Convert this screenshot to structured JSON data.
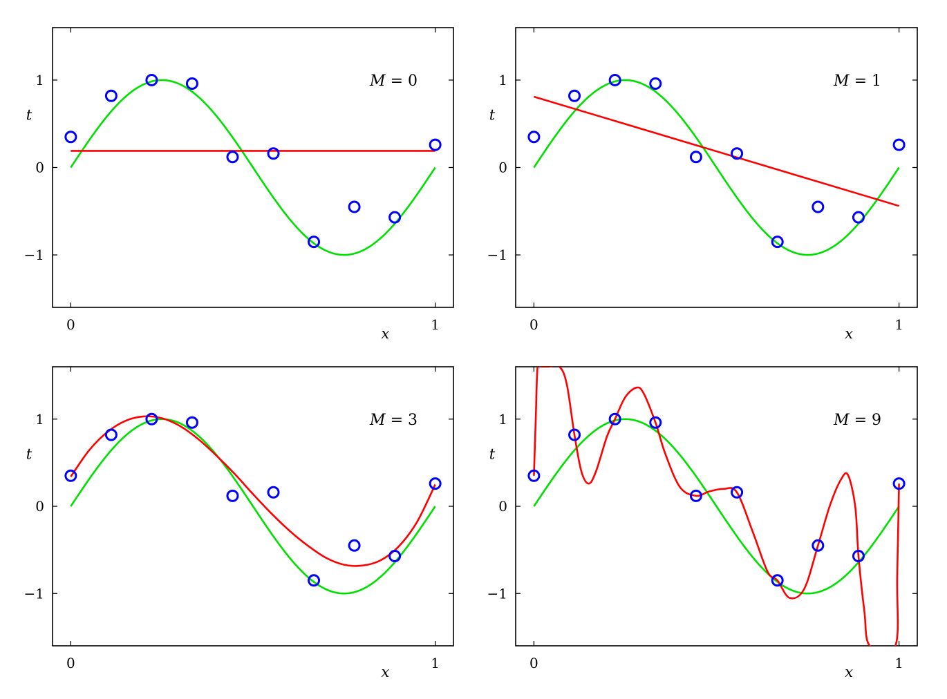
{
  "chart_data": [
    {
      "type": "line",
      "panel_label": {
        "var": "M",
        "eq": " = ",
        "val": "0"
      },
      "xlabel": "x",
      "ylabel": "t",
      "xlim": [
        -0.05,
        1.05
      ],
      "ylim": [
        -1.6,
        1.6
      ],
      "xticks": [
        {
          "v": 0,
          "label": "0"
        },
        {
          "v": 1,
          "label": "1"
        }
      ],
      "yticks": [
        {
          "v": -1,
          "label": "−1"
        },
        {
          "v": 0,
          "label": "0"
        },
        {
          "v": 1,
          "label": "1"
        }
      ],
      "grid": false,
      "points": {
        "x": [
          0,
          0.111,
          0.222,
          0.333,
          0.444,
          0.556,
          0.667,
          0.778,
          0.889,
          1.0
        ],
        "y": [
          0.35,
          0.82,
          1.0,
          0.96,
          0.12,
          0.16,
          -0.85,
          -0.45,
          -0.57,
          0.26
        ],
        "color": "#0000ff"
      },
      "true_curve": {
        "function": "sin(2πx)",
        "color": "#00e000"
      },
      "fit_curve": {
        "x": [
          0,
          1
        ],
        "y": [
          0.19,
          0.19
        ],
        "color": "#ff0000"
      }
    },
    {
      "type": "line",
      "panel_label": {
        "var": "M",
        "eq": " = ",
        "val": "1"
      },
      "xlabel": "x",
      "ylabel": "t",
      "xlim": [
        -0.05,
        1.05
      ],
      "ylim": [
        -1.6,
        1.6
      ],
      "xticks": [
        {
          "v": 0,
          "label": "0"
        },
        {
          "v": 1,
          "label": "1"
        }
      ],
      "yticks": [
        {
          "v": -1,
          "label": "−1"
        },
        {
          "v": 0,
          "label": "0"
        },
        {
          "v": 1,
          "label": "1"
        }
      ],
      "grid": false,
      "points": {
        "x": [
          0,
          0.111,
          0.222,
          0.333,
          0.444,
          0.556,
          0.667,
          0.778,
          0.889,
          1.0
        ],
        "y": [
          0.35,
          0.82,
          1.0,
          0.96,
          0.12,
          0.16,
          -0.85,
          -0.45,
          -0.57,
          0.26
        ],
        "color": "#0000ff"
      },
      "true_curve": {
        "function": "sin(2πx)",
        "color": "#00e000"
      },
      "fit_curve": {
        "x": [
          0,
          1
        ],
        "y": [
          0.81,
          -0.44
        ],
        "color": "#ff0000"
      }
    },
    {
      "type": "line",
      "panel_label": {
        "var": "M",
        "eq": " = ",
        "val": "3"
      },
      "xlabel": "x",
      "ylabel": "t",
      "xlim": [
        -0.05,
        1.05
      ],
      "ylim": [
        -1.6,
        1.6
      ],
      "xticks": [
        {
          "v": 0,
          "label": "0"
        },
        {
          "v": 1,
          "label": "1"
        }
      ],
      "yticks": [
        {
          "v": -1,
          "label": "−1"
        },
        {
          "v": 0,
          "label": "0"
        },
        {
          "v": 1,
          "label": "1"
        }
      ],
      "grid": false,
      "points": {
        "x": [
          0,
          0.111,
          0.222,
          0.333,
          0.444,
          0.556,
          0.667,
          0.778,
          0.889,
          1.0
        ],
        "y": [
          0.35,
          0.82,
          1.0,
          0.96,
          0.12,
          0.16,
          -0.85,
          -0.45,
          -0.57,
          0.26
        ],
        "color": "#0000ff"
      },
      "true_curve": {
        "function": "sin(2πx)",
        "color": "#00e000"
      },
      "fit_curve": {
        "x": [
          0,
          0.05,
          0.1,
          0.15,
          0.2,
          0.25,
          0.3,
          0.35,
          0.4,
          0.45,
          0.5,
          0.55,
          0.6,
          0.65,
          0.7,
          0.75,
          0.8,
          0.85,
          0.9,
          0.95,
          1.0
        ],
        "y": [
          0.34,
          0.64,
          0.85,
          0.98,
          1.03,
          1.01,
          0.92,
          0.77,
          0.58,
          0.37,
          0.14,
          -0.08,
          -0.28,
          -0.45,
          -0.59,
          -0.67,
          -0.68,
          -0.62,
          -0.46,
          -0.18,
          0.25
        ],
        "color": "#ff0000"
      }
    },
    {
      "type": "line",
      "panel_label": {
        "var": "M",
        "eq": " = ",
        "val": "9"
      },
      "xlabel": "x",
      "ylabel": "t",
      "xlim": [
        -0.05,
        1.05
      ],
      "ylim": [
        -1.6,
        1.6
      ],
      "xticks": [
        {
          "v": 0,
          "label": "0"
        },
        {
          "v": 1,
          "label": "1"
        }
      ],
      "yticks": [
        {
          "v": -1,
          "label": "−1"
        },
        {
          "v": 0,
          "label": "0"
        },
        {
          "v": 1,
          "label": "1"
        }
      ],
      "grid": false,
      "points": {
        "x": [
          0,
          0.111,
          0.222,
          0.333,
          0.444,
          0.556,
          0.667,
          0.778,
          0.889,
          1.0
        ],
        "y": [
          0.35,
          0.82,
          1.0,
          0.96,
          0.12,
          0.16,
          -0.85,
          -0.45,
          -0.57,
          0.26
        ],
        "color": "#0000ff"
      },
      "true_curve": {
        "function": "sin(2πx)",
        "color": "#00e000"
      },
      "fit_curve": {
        "x": [
          0,
          0.005,
          0.01,
          0.02,
          0.04,
          0.07,
          0.09,
          0.111,
          0.13,
          0.15,
          0.17,
          0.2,
          0.222,
          0.25,
          0.28,
          0.3,
          0.333,
          0.36,
          0.4,
          0.444,
          0.48,
          0.52,
          0.556,
          0.6,
          0.64,
          0.667,
          0.7,
          0.74,
          0.778,
          0.81,
          0.84,
          0.86,
          0.88,
          0.889,
          0.905,
          0.92,
          0.99,
          0.995,
          1.0
        ],
        "y": [
          0.35,
          1.0,
          1.6,
          1.6,
          1.6,
          1.6,
          1.4,
          0.82,
          0.4,
          0.26,
          0.4,
          0.8,
          1.0,
          1.25,
          1.36,
          1.3,
          0.96,
          0.6,
          0.22,
          0.12,
          0.17,
          0.2,
          0.16,
          -0.3,
          -0.75,
          -0.85,
          -1.05,
          -0.95,
          -0.45,
          0.0,
          0.3,
          0.36,
          0.0,
          -0.57,
          -1.2,
          -1.6,
          -1.6,
          -0.8,
          0.26
        ],
        "color": "#ff0000"
      }
    }
  ]
}
